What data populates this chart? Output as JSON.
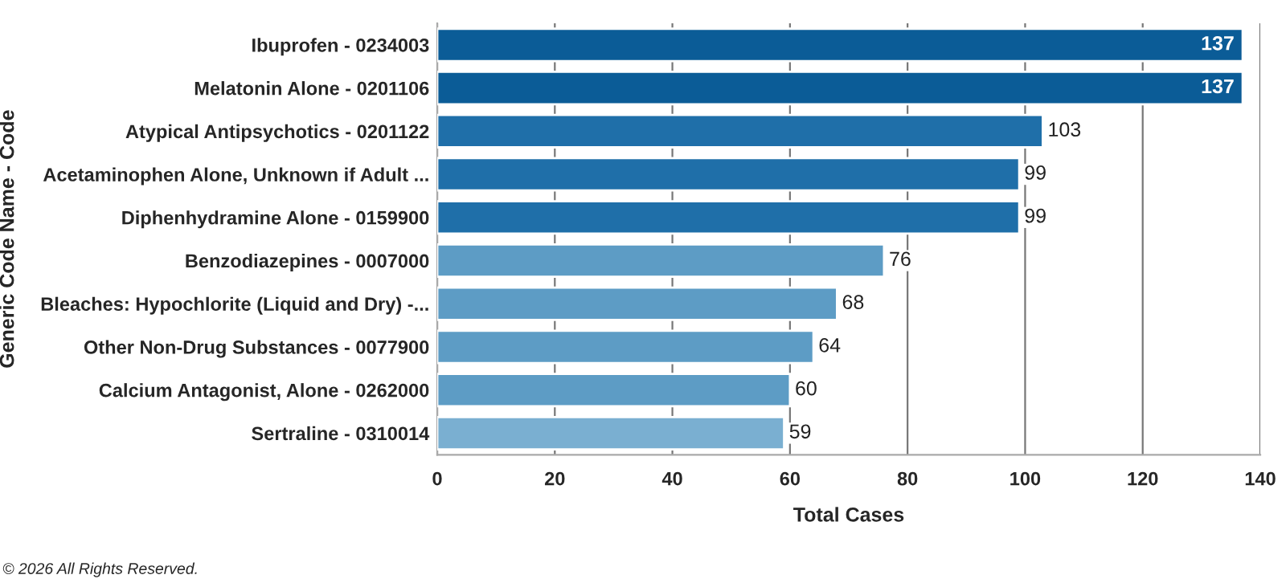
{
  "chart_data": {
    "type": "bar",
    "orientation": "horizontal",
    "xlabel": "Total Cases",
    "ylabel": "Generic Code Name - Code",
    "categories": [
      "Ibuprofen - 0234003",
      "Melatonin Alone - 0201106",
      "Atypical Antipsychotics - 0201122",
      "Acetaminophen Alone, Unknown if Adult ...",
      "Diphenhydramine Alone - 0159900",
      "Benzodiazepines - 0007000",
      "Bleaches: Hypochlorite (Liquid and Dry) -...",
      "Other Non-Drug Substances - 0077900",
      "Calcium Antagonist, Alone - 0262000",
      "Sertraline - 0310014"
    ],
    "values": [
      137,
      137,
      103,
      99,
      99,
      76,
      68,
      64,
      60,
      59
    ],
    "colors": [
      "#0b5c97",
      "#0b5c97",
      "#1f6fa9",
      "#1f6fa9",
      "#1f6fa9",
      "#5d9cc5",
      "#5d9cc5",
      "#5d9cc5",
      "#5d9cc5",
      "#7aafd1"
    ],
    "xlim": [
      0,
      140
    ],
    "xticks": [
      0,
      20,
      40,
      60,
      80,
      100,
      120,
      140
    ],
    "grid": "x",
    "data_labels": true,
    "annotations": [
      "© 2026 All Rights Reserved."
    ]
  }
}
